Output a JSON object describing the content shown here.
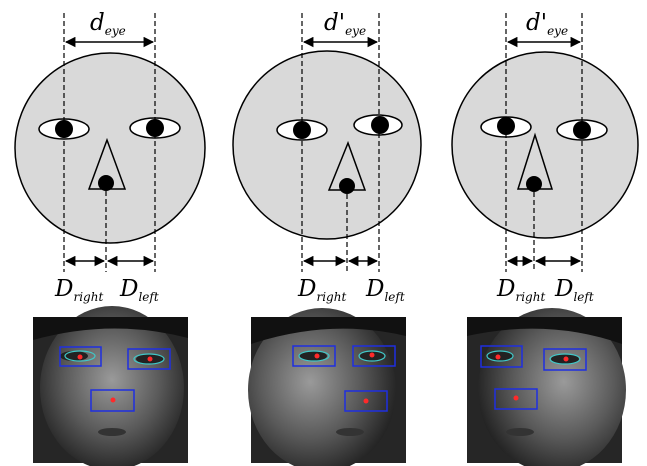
{
  "panels": [
    {
      "id": "frontal",
      "top_label": {
        "base": "d",
        "prime": "",
        "sub": "eye"
      },
      "bottom_labels": [
        {
          "base": "D",
          "sub": "right"
        },
        {
          "base": "D",
          "sub": "left"
        }
      ]
    },
    {
      "id": "turned-left",
      "top_label": {
        "base": "d",
        "prime": "'",
        "sub": "eye"
      },
      "bottom_labels": [
        {
          "base": "D",
          "sub": "right"
        },
        {
          "base": "D",
          "sub": "left"
        }
      ]
    },
    {
      "id": "turned-right",
      "top_label": {
        "base": "d",
        "prime": "'",
        "sub": "eye"
      },
      "bottom_labels": [
        {
          "base": "D",
          "sub": "right"
        },
        {
          "base": "D",
          "sub": "left"
        }
      ]
    }
  ],
  "colors": {
    "face_fill": "#d9d9d9",
    "photo_bg": "#2a2a2a",
    "detection_box": "#1f2fe0",
    "eye_contour": "#40c8c8",
    "detection_point": "#ff2a2a"
  }
}
